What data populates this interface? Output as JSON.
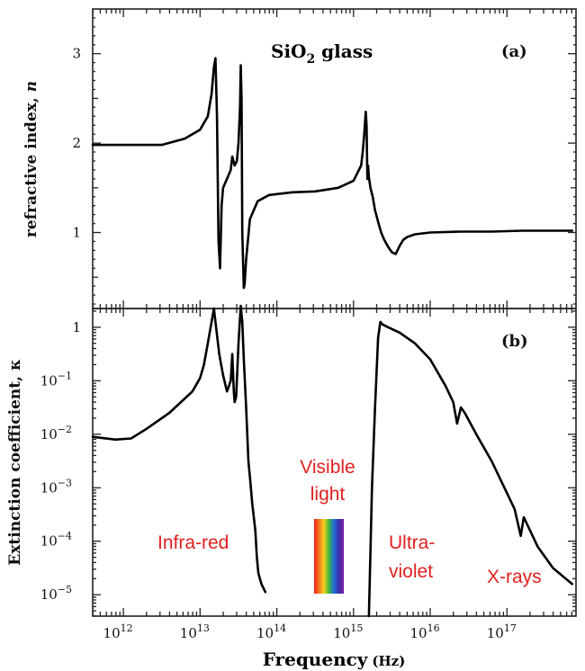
{
  "chart_data": [
    {
      "panel": "(a)",
      "type": "line",
      "title": "SiO2 glass",
      "title_parts": {
        "base": "SiO",
        "sub": "2",
        "rest": " glass"
      },
      "ylabel": "refractive index, n",
      "ylabel_parts": {
        "base": "refractive index, ",
        "italic": "n"
      },
      "xlabel": "",
      "x_scale": "log",
      "xlim_exp": [
        11.6,
        17.9
      ],
      "ylim": [
        0.15,
        3.5
      ],
      "yticks": [
        1,
        2,
        3
      ],
      "ytick_labels": [
        "1",
        "2",
        "3"
      ],
      "grid": false,
      "series": [
        {
          "x_log10": [
            11.6,
            12.0,
            12.5,
            12.8,
            13.0,
            13.1,
            13.15,
            13.18,
            13.2,
            13.22,
            13.24,
            13.26,
            13.28,
            13.3,
            13.35,
            13.4,
            13.42,
            13.45,
            13.48,
            13.5,
            13.52,
            13.53,
            13.54,
            13.55,
            13.57,
            13.58,
            13.6,
            13.65,
            13.75,
            13.9,
            14.2,
            14.5,
            14.8,
            15.0,
            15.1,
            15.12,
            15.14,
            15.16,
            15.17,
            15.18,
            15.19,
            15.2,
            15.22,
            15.25,
            15.28,
            15.32,
            15.36,
            15.4,
            15.45,
            15.5,
            15.55,
            15.6,
            15.65,
            15.7,
            15.8,
            16.0,
            16.4,
            16.8,
            17.2,
            17.6,
            17.85
          ],
          "y": [
            1.98,
            1.98,
            1.98,
            2.05,
            2.15,
            2.3,
            2.55,
            2.85,
            2.95,
            2.3,
            0.9,
            0.6,
            1.3,
            1.5,
            1.6,
            1.7,
            1.85,
            1.75,
            1.8,
            2.0,
            2.4,
            2.87,
            2.5,
            1.0,
            0.38,
            0.42,
            0.7,
            1.15,
            1.35,
            1.42,
            1.45,
            1.46,
            1.5,
            1.58,
            1.75,
            1.9,
            2.1,
            2.35,
            2.2,
            1.6,
            1.75,
            1.62,
            1.5,
            1.4,
            1.25,
            1.12,
            1.0,
            0.92,
            0.84,
            0.78,
            0.76,
            0.85,
            0.92,
            0.95,
            0.98,
            1.0,
            1.01,
            1.01,
            1.02,
            1.02,
            1.02
          ]
        }
      ]
    },
    {
      "panel": "(b)",
      "type": "line",
      "ylabel": "Extinction coefficient, κ",
      "xlabel": "Frequency (Hz)",
      "xlabel_parts": {
        "main": "Frequency",
        "unit": "(Hz)"
      },
      "x_scale": "log",
      "y_scale": "log",
      "xlim_exp": [
        11.6,
        17.9
      ],
      "ylim_exp": [
        -5.4,
        0.35
      ],
      "yticks_exp": [
        -5,
        -4,
        -3,
        -2,
        -1,
        0
      ],
      "ytick_labels": [
        {
          "base": "10",
          "sup": "−5"
        },
        {
          "base": "10",
          "sup": "−4"
        },
        {
          "base": "10",
          "sup": "−3"
        },
        {
          "base": "10",
          "sup": "−2"
        },
        {
          "base": "10",
          "sup": "−1"
        },
        {
          "base": "1",
          "sup": ""
        }
      ],
      "xticks_exp": [
        12,
        13,
        14,
        15,
        16,
        17
      ],
      "xtick_labels": [
        {
          "base": "10",
          "sup": "12"
        },
        {
          "base": "10",
          "sup": "13"
        },
        {
          "base": "10",
          "sup": "14"
        },
        {
          "base": "10",
          "sup": "15"
        },
        {
          "base": "10",
          "sup": "16"
        },
        {
          "base": "10",
          "sup": "17"
        }
      ],
      "grid": false,
      "series": [
        {
          "x_log10": [
            11.6,
            11.9,
            12.1,
            12.3,
            12.6,
            12.9,
            13.0,
            13.05,
            13.1,
            13.15,
            13.18,
            13.2,
            13.25,
            13.3,
            13.35,
            13.4,
            13.42,
            13.44,
            13.45,
            13.47,
            13.5,
            13.53,
            13.55,
            13.57,
            13.6,
            13.63,
            13.65,
            13.68,
            13.72,
            13.74,
            13.76,
            13.8,
            13.85
          ],
          "y_log10": [
            -2.05,
            -2.1,
            -2.08,
            -1.9,
            -1.6,
            -1.2,
            -0.95,
            -0.7,
            -0.3,
            0.1,
            0.35,
            0.1,
            -0.5,
            -0.9,
            -1.2,
            -1.0,
            -0.5,
            -1.2,
            -1.4,
            -1.3,
            -0.3,
            0.4,
            0.1,
            -0.6,
            -1.5,
            -2.5,
            -2.8,
            -3.3,
            -3.8,
            -4.3,
            -4.6,
            -4.8,
            -4.95
          ]
        },
        {
          "x_log10": [
            15.2,
            15.24,
            15.28,
            15.32,
            15.35,
            15.38,
            15.45,
            15.6,
            15.8,
            16.0,
            16.2,
            16.3,
            16.35,
            16.4,
            16.45,
            16.6,
            16.8,
            17.0,
            17.1,
            17.18,
            17.22,
            17.4,
            17.6,
            17.85
          ],
          "y_log10": [
            -5.4,
            -3.0,
            -1.5,
            -0.2,
            0.1,
            0.05,
            0.0,
            -0.1,
            -0.3,
            -0.6,
            -1.1,
            -1.4,
            -1.8,
            -1.5,
            -1.6,
            -2.0,
            -2.5,
            -3.1,
            -3.4,
            -3.9,
            -3.55,
            -4.1,
            -4.5,
            -4.8
          ]
        }
      ],
      "annotations": [
        {
          "text": "Infra-red",
          "color": "#e02020"
        },
        {
          "text": "Visible",
          "color": "#e02020"
        },
        {
          "text": "light",
          "color": "#e02020"
        },
        {
          "text": "Ultra-",
          "color": "#e02020"
        },
        {
          "text": "violet",
          "color": "#e02020"
        },
        {
          "text": "X-rays",
          "color": "#e02020"
        }
      ],
      "spectrum_colors": [
        "#e81e1e",
        "#f47a1f",
        "#f7d21c",
        "#3fb63f",
        "#1f6fd6",
        "#3b2fb0",
        "#7b1fa2"
      ]
    }
  ]
}
